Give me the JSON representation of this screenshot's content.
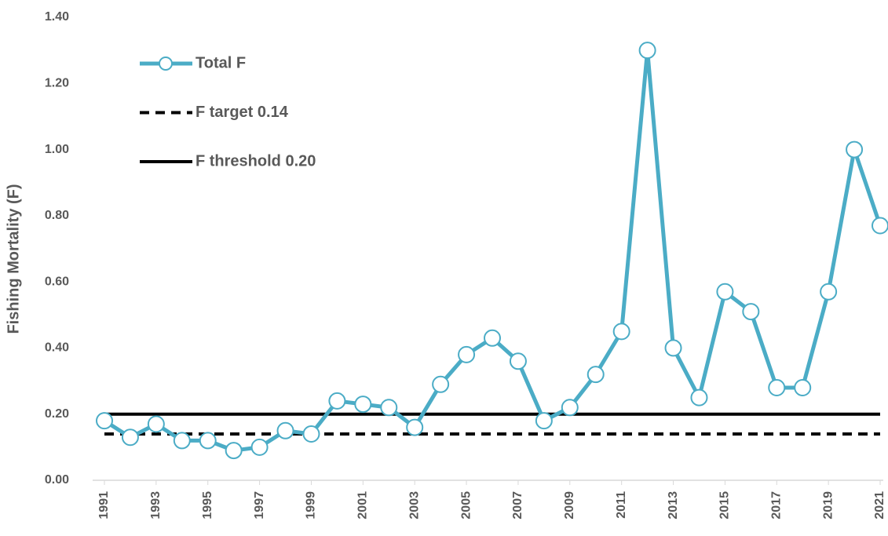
{
  "chart_data": {
    "type": "line",
    "y_label": "Fishing Mortality (F)",
    "x": [
      1991,
      1992,
      1993,
      1994,
      1995,
      1996,
      1997,
      1998,
      1999,
      2000,
      2001,
      2002,
      2003,
      2004,
      2005,
      2006,
      2007,
      2008,
      2009,
      2010,
      2011,
      2012,
      2013,
      2014,
      2015,
      2016,
      2017,
      2018,
      2019,
      2020,
      2021
    ],
    "xlim": [
      1991,
      2021
    ],
    "xticks": [
      1991,
      1993,
      1995,
      1997,
      1999,
      2001,
      2003,
      2005,
      2007,
      2009,
      2011,
      2013,
      2015,
      2017,
      2019,
      2021
    ],
    "ylim": [
      0,
      1.4
    ],
    "yticks": [
      {
        "value": 0,
        "label": "0.00"
      },
      {
        "value": 0.2,
        "label": "0.20"
      },
      {
        "value": 0.4,
        "label": "0.40"
      },
      {
        "value": 0.6,
        "label": "0.60"
      },
      {
        "value": 0.8,
        "label": "0.80"
      },
      {
        "value": 1,
        "label": "1.00"
      },
      {
        "value": 1.2,
        "label": "1.20"
      },
      {
        "value": 1.4,
        "label": "1.40"
      }
    ],
    "legend": "upper left",
    "series": [
      {
        "name": "Total F",
        "color": "#4bacc6",
        "style": "solid",
        "markers": true,
        "values": [
          0.18,
          0.13,
          0.17,
          0.12,
          0.12,
          0.09,
          0.1,
          0.15,
          0.14,
          0.24,
          0.23,
          0.22,
          0.16,
          0.29,
          0.38,
          0.43,
          0.36,
          0.18,
          0.22,
          0.32,
          0.45,
          1.3,
          0.4,
          0.25,
          0.57,
          0.51,
          0.28,
          0.28,
          0.57,
          1.0,
          0.77
        ]
      },
      {
        "name": "F target 0.14",
        "color": "#000000",
        "style": "dashed",
        "markers": false,
        "values": [
          0.14,
          0.14,
          0.14,
          0.14,
          0.14,
          0.14,
          0.14,
          0.14,
          0.14,
          0.14,
          0.14,
          0.14,
          0.14,
          0.14,
          0.14,
          0.14,
          0.14,
          0.14,
          0.14,
          0.14,
          0.14,
          0.14,
          0.14,
          0.14,
          0.14,
          0.14,
          0.14,
          0.14,
          0.14,
          0.14,
          0.14
        ]
      },
      {
        "name": "F threshold 0.20",
        "color": "#000000",
        "style": "solid",
        "markers": false,
        "values": [
          0.2,
          0.2,
          0.2,
          0.2,
          0.2,
          0.2,
          0.2,
          0.2,
          0.2,
          0.2,
          0.2,
          0.2,
          0.2,
          0.2,
          0.2,
          0.2,
          0.2,
          0.2,
          0.2,
          0.2,
          0.2,
          0.2,
          0.2,
          0.2,
          0.2,
          0.2,
          0.2,
          0.2,
          0.2,
          0.2,
          0.2
        ]
      }
    ]
  }
}
